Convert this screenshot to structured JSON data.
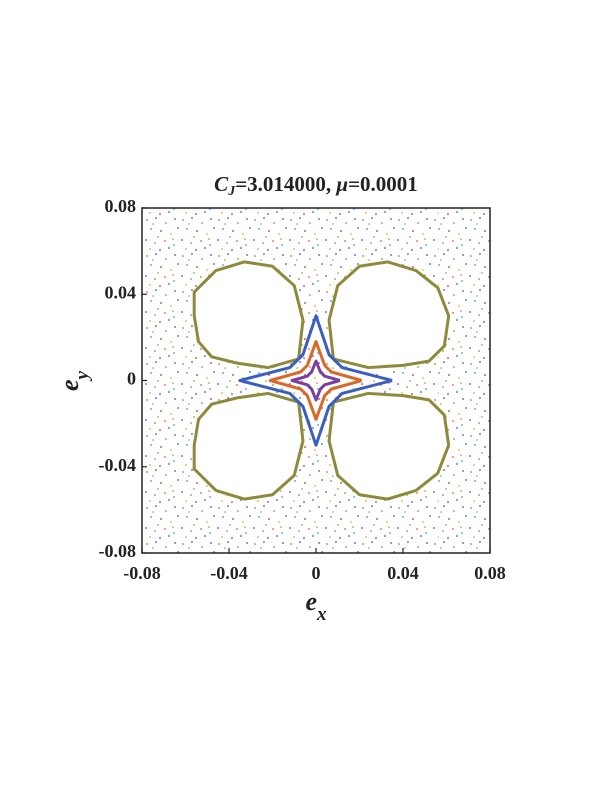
{
  "chart_data": {
    "type": "line",
    "title": {
      "symbol": "C",
      "subscript": "J",
      "text": "=3.014000, ",
      "mu": "μ",
      "text2": "=0.0001"
    },
    "x_label": {
      "symbol": "e",
      "subscript": "x"
    },
    "y_label": {
      "symbol": "e",
      "subscript": "y"
    },
    "xlim": [
      -0.08,
      0.08
    ],
    "ylim": [
      -0.08,
      0.08
    ],
    "xticks": [
      -0.08,
      -0.04,
      0,
      0.04,
      0.08
    ],
    "yticks": [
      -0.08,
      -0.04,
      0,
      0.04,
      0.08
    ],
    "series": [
      {
        "color": "#8d8a3c",
        "fill": "#ffffff",
        "x": [
          0.008,
          0.006,
          0.01,
          0.02,
          0.033,
          0.046,
          0.056,
          0.061,
          0.059,
          0.052,
          0.04,
          0.024,
          0.008
        ],
        "y": [
          0.01,
          0.028,
          0.044,
          0.053,
          0.055,
          0.051,
          0.043,
          0.03,
          0.016,
          0.009,
          0.007,
          0.006,
          0.01
        ]
      },
      {
        "color": "#8d8a3c",
        "fill": "#ffffff",
        "x": [
          -0.008,
          -0.006,
          -0.01,
          -0.02,
          -0.033,
          -0.046,
          -0.056,
          -0.056,
          -0.054,
          -0.048,
          -0.036,
          -0.022,
          -0.008
        ],
        "y": [
          0.01,
          0.028,
          0.044,
          0.053,
          0.055,
          0.051,
          0.041,
          0.03,
          0.018,
          0.011,
          0.008,
          0.006,
          0.01
        ]
      },
      {
        "color": "#8d8a3c",
        "fill": "#ffffff",
        "x": [
          -0.008,
          -0.006,
          -0.01,
          -0.02,
          -0.033,
          -0.046,
          -0.056,
          -0.056,
          -0.054,
          -0.048,
          -0.036,
          -0.022,
          -0.008
        ],
        "y": [
          -0.01,
          -0.028,
          -0.044,
          -0.053,
          -0.055,
          -0.051,
          -0.041,
          -0.03,
          -0.018,
          -0.011,
          -0.008,
          -0.006,
          -0.01
        ]
      },
      {
        "color": "#8d8a3c",
        "fill": "#ffffff",
        "x": [
          0.008,
          0.006,
          0.01,
          0.02,
          0.033,
          0.046,
          0.056,
          0.061,
          0.059,
          0.052,
          0.04,
          0.024,
          0.008
        ],
        "y": [
          -0.01,
          -0.028,
          -0.044,
          -0.053,
          -0.055,
          -0.051,
          -0.043,
          -0.03,
          -0.016,
          -0.009,
          -0.007,
          -0.006,
          -0.01
        ]
      },
      {
        "color": "#3b5fc0",
        "fill": "none",
        "x": [
          0.035,
          0.012,
          0.006,
          0,
          -0.006,
          -0.012,
          -0.035,
          -0.012,
          -0.006,
          0,
          0.006,
          0.012,
          0.035
        ],
        "y": [
          0,
          0.006,
          0.012,
          0.03,
          0.012,
          0.006,
          0,
          -0.006,
          -0.012,
          -0.03,
          -0.012,
          -0.006,
          0
        ]
      },
      {
        "color": "#d9692a",
        "fill": "none",
        "x": [
          0.021,
          0.007,
          0.004,
          0,
          -0.004,
          -0.007,
          -0.021,
          -0.007,
          -0.004,
          0,
          0.004,
          0.007,
          0.021
        ],
        "y": [
          0,
          0.004,
          0.007,
          0.018,
          0.007,
          0.004,
          0,
          -0.004,
          -0.007,
          -0.018,
          -0.007,
          -0.004,
          0
        ]
      },
      {
        "color": "#7b3f9e",
        "fill": "none",
        "x": [
          0.011,
          0.004,
          0.002,
          0,
          -0.002,
          -0.004,
          -0.011,
          -0.004,
          -0.002,
          0,
          0.002,
          0.004,
          0.011
        ],
        "y": [
          0,
          0.002,
          0.004,
          0.009,
          0.004,
          0.002,
          0,
          -0.002,
          -0.004,
          -0.009,
          -0.004,
          -0.002,
          0
        ]
      }
    ]
  }
}
